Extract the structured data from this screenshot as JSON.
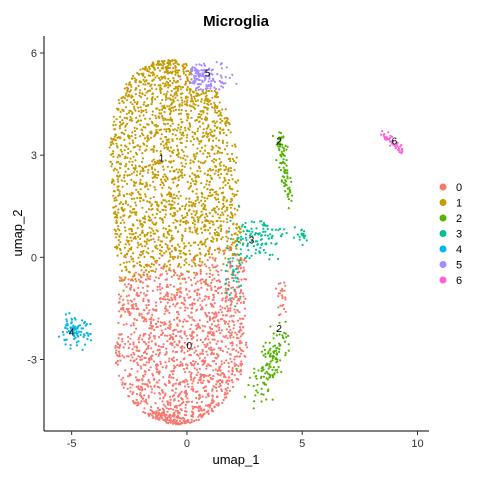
{
  "chart_data": {
    "type": "scatter",
    "title": "Microglia",
    "xlabel": "umap_1",
    "ylabel": "umap_2",
    "xlim": [
      -6.2,
      10.5
    ],
    "ylim": [
      -5.1,
      6.5
    ],
    "xticks": [
      -5,
      0,
      5,
      10
    ],
    "yticks": [
      -3,
      0,
      3,
      6
    ],
    "grid": false,
    "legend": "right",
    "series": [
      {
        "name": "0",
        "color": "#F8766D"
      },
      {
        "name": "1",
        "color": "#C49A00"
      },
      {
        "name": "2",
        "color": "#53B400"
      },
      {
        "name": "3",
        "color": "#00C094"
      },
      {
        "name": "4",
        "color": "#00B6EB"
      },
      {
        "name": "5",
        "color": "#A58AFF"
      },
      {
        "name": "6",
        "color": "#FB61D7"
      }
    ],
    "cluster_labels": [
      {
        "text": "0",
        "x": 0.1,
        "y": -2.6
      },
      {
        "text": "1",
        "x": -1.1,
        "y": 2.9
      },
      {
        "text": "2",
        "x": 4.0,
        "y": 3.4
      },
      {
        "text": "2",
        "x": 4.0,
        "y": -2.1
      },
      {
        "text": "3",
        "x": 2.8,
        "y": 0.5
      },
      {
        "text": "4",
        "x": -5.0,
        "y": -2.2
      },
      {
        "text": "5",
        "x": 0.9,
        "y": 5.4
      },
      {
        "text": "6",
        "x": 9.0,
        "y": 3.4
      }
    ]
  }
}
